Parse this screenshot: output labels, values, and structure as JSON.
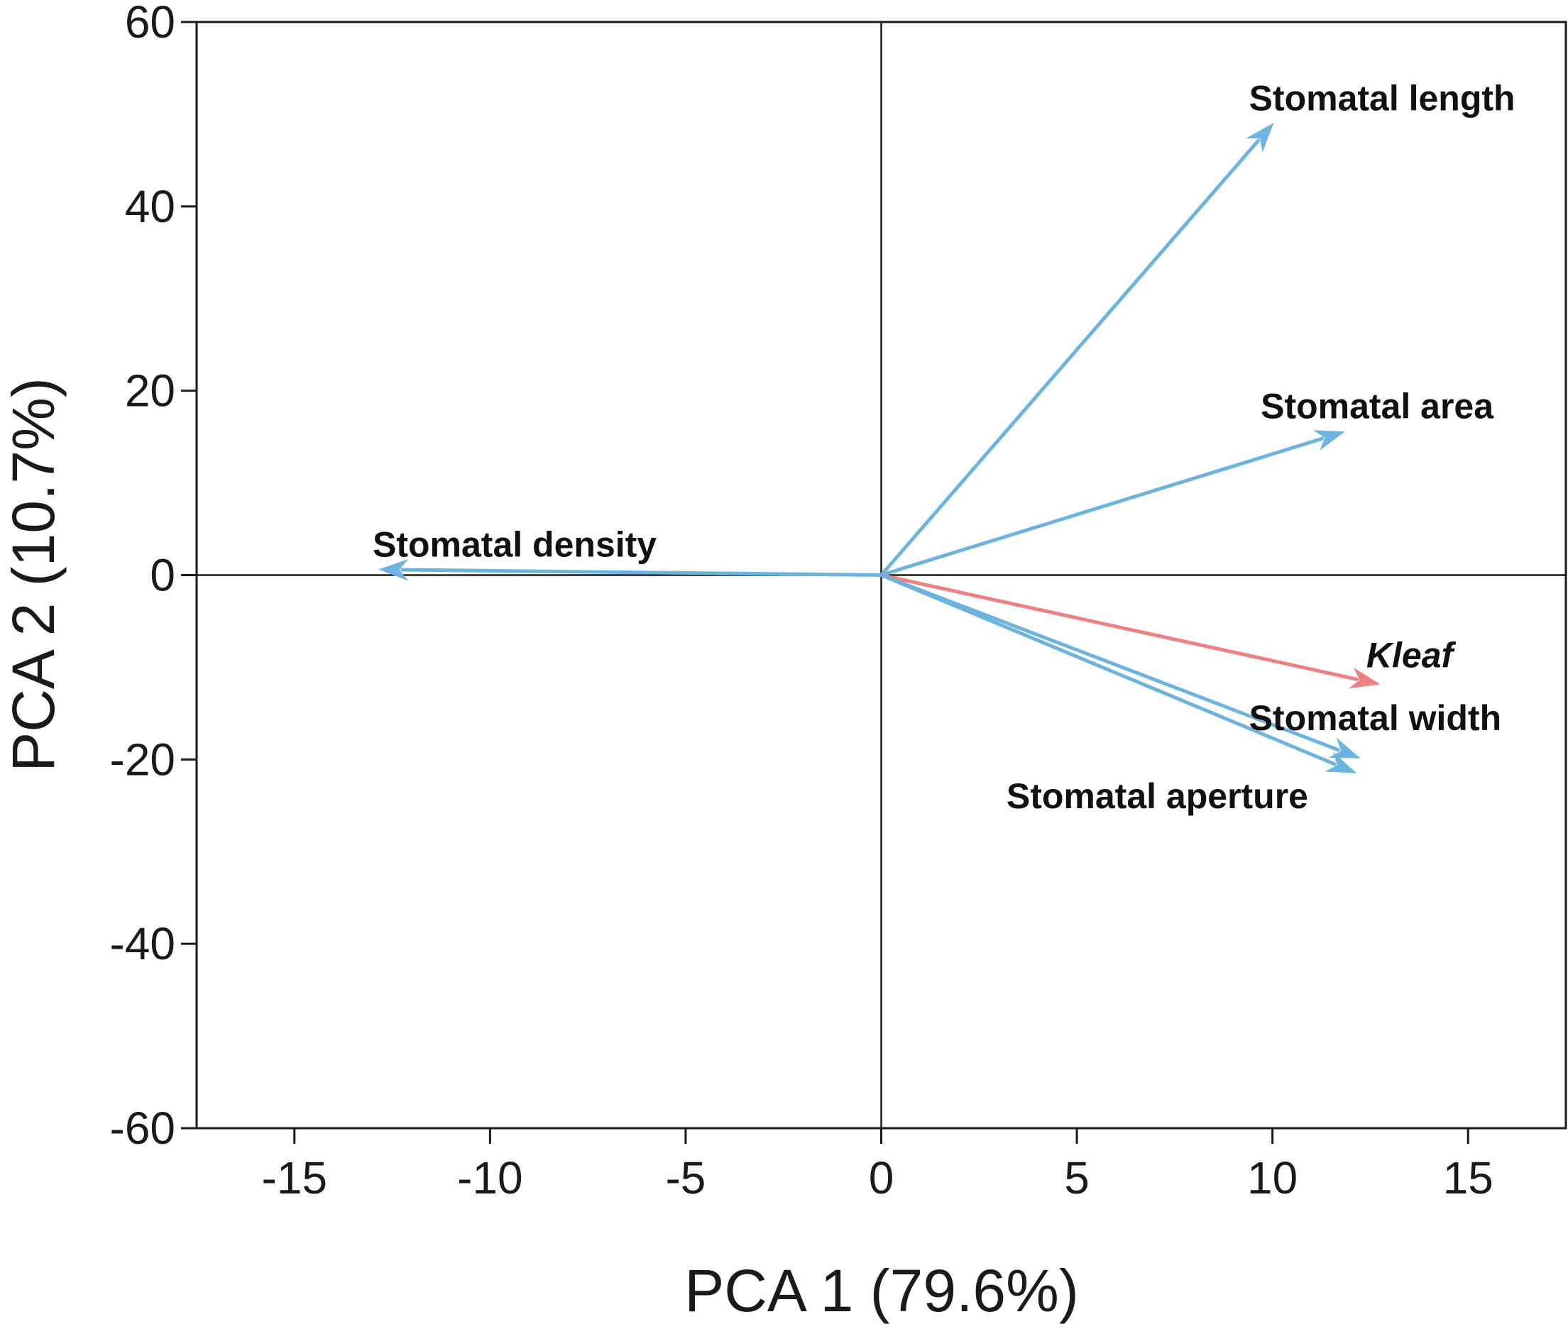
{
  "chart_data": {
    "type": "biplot",
    "title": "",
    "xlabel": "PCA 1 (79.6%)",
    "ylabel": "PCA 2 (10.7%)",
    "xlim": [
      -17.5,
      17.5
    ],
    "ylim": [
      -60,
      60
    ],
    "xticks": [
      -15,
      -10,
      -5,
      0,
      5,
      10,
      15
    ],
    "yticks": [
      -60,
      -40,
      -20,
      0,
      20,
      40,
      60
    ],
    "xtick_labels": [
      "-15",
      "-10",
      "-5",
      "0",
      "5",
      "10",
      "15"
    ],
    "ytick_labels": [
      "-60",
      "-40",
      "-20",
      "0",
      "20",
      "40",
      "60"
    ],
    "reference_lines": {
      "x": 0,
      "y": 0
    },
    "colors": {
      "trait": "#6cb4e0",
      "response": "#f07f7f",
      "axis": "#1a1a1a"
    },
    "vectors": [
      {
        "name": "Stomatal length",
        "x": 10.0,
        "y": 48.9,
        "color": "trait",
        "italic": false,
        "label_x": 9.4,
        "label_y": 50.4,
        "anchor": "start"
      },
      {
        "name": "Stomatal area",
        "x": 11.8,
        "y": 15.5,
        "color": "trait",
        "italic": false,
        "label_x": 9.7,
        "label_y": 17.0,
        "anchor": "start"
      },
      {
        "name": "Stomatal density",
        "x": -12.8,
        "y": 0.6,
        "color": "trait",
        "italic": false,
        "label_x": -13.0,
        "label_y": 2.0,
        "anchor": "start"
      },
      {
        "name": "Kleaf",
        "x": 12.7,
        "y": -11.8,
        "color": "response",
        "italic": true,
        "label_x": 12.4,
        "label_y": -10.0,
        "anchor": "start"
      },
      {
        "name": "Stomatal width",
        "x": 12.2,
        "y": -19.8,
        "color": "trait",
        "italic": false,
        "label_x": 9.4,
        "label_y": -16.8,
        "anchor": "start"
      },
      {
        "name": "Stomatal aperture",
        "x": 12.1,
        "y": -21.4,
        "color": "trait",
        "italic": false,
        "label_x": 3.2,
        "label_y": -25.3,
        "anchor": "start"
      }
    ]
  }
}
